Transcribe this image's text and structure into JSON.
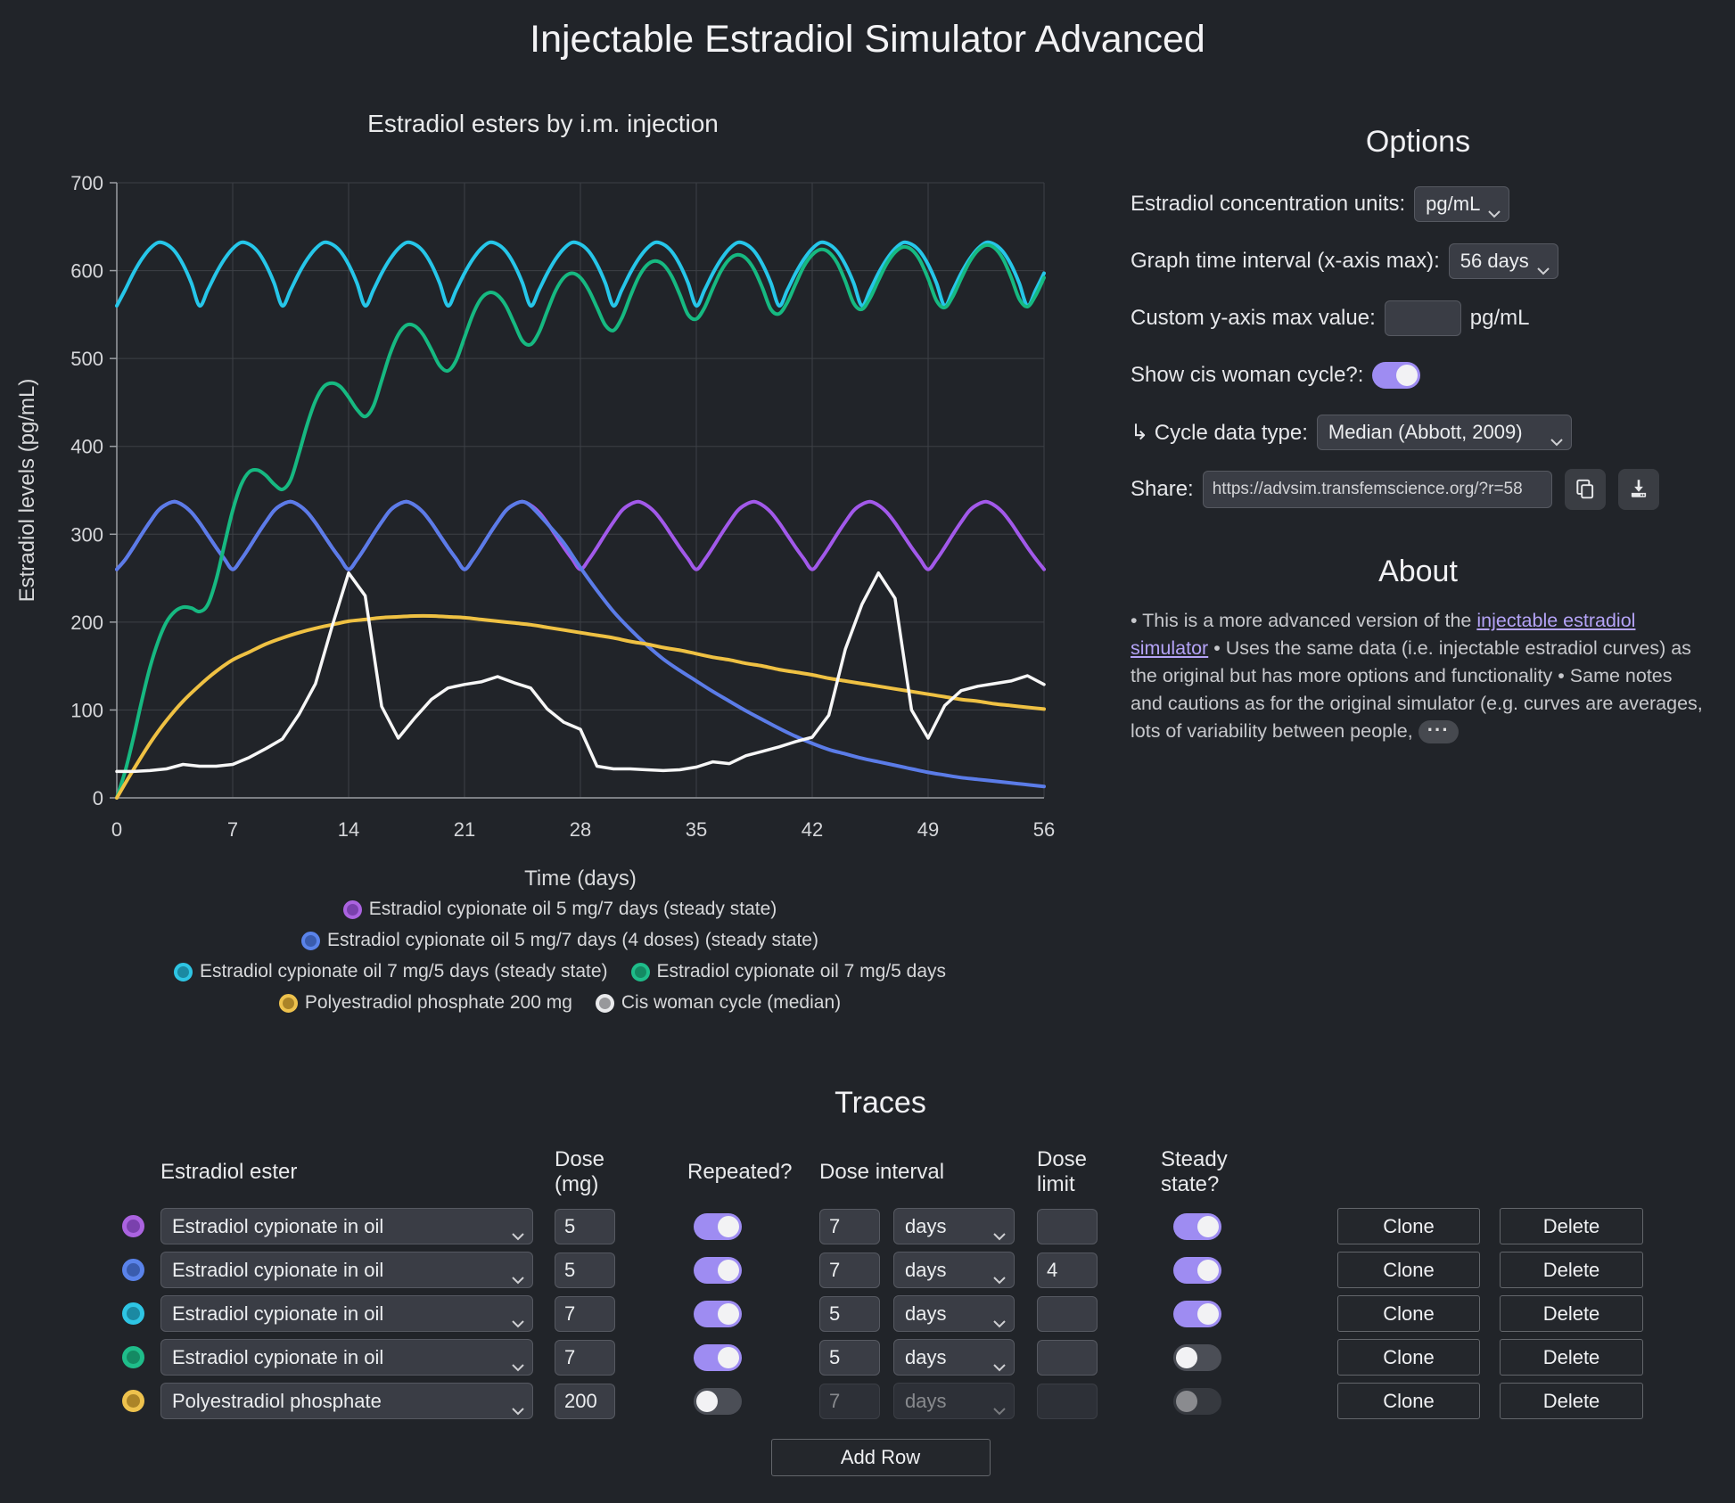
{
  "page": {
    "title": "Injectable Estradiol Simulator Advanced"
  },
  "chart_data": {
    "type": "line",
    "title": "Estradiol esters by i.m. injection",
    "xlabel": "Time (days)",
    "ylabel": "Estradiol levels (pg/mL)",
    "xlim": [
      0,
      56
    ],
    "ylim": [
      0,
      700
    ],
    "xticks": [
      0,
      7,
      14,
      21,
      28,
      35,
      42,
      49,
      56
    ],
    "yticks": [
      0,
      100,
      200,
      300,
      400,
      500,
      600,
      700
    ],
    "grid": true,
    "legend_position": "bottom",
    "series": [
      {
        "name": "Estradiol cypionate oil 5 mg/7 days (steady state)",
        "color": "#a259ea",
        "dot_ring": "#ab63e0",
        "dot_fill": "#7a41ad",
        "smooth": true,
        "width": 4,
        "x_start": 0,
        "x_step": 0.5,
        "values": [
          260,
          271,
          285,
          300,
          314,
          327,
          334,
          337,
          333,
          325,
          313,
          299,
          285,
          272,
          260,
          271,
          285,
          300,
          314,
          327,
          334,
          337,
          333,
          325,
          313,
          299,
          285,
          272,
          260,
          271,
          285,
          300,
          314,
          327,
          334,
          337,
          333,
          325,
          313,
          299,
          285,
          272,
          260,
          271,
          285,
          300,
          314,
          327,
          334,
          337,
          333,
          325,
          313,
          299,
          285,
          272,
          260,
          271,
          285,
          300,
          314,
          327,
          334,
          337,
          333,
          325,
          313,
          299,
          285,
          272,
          260,
          271,
          285,
          300,
          314,
          327,
          334,
          337,
          333,
          325,
          313,
          299,
          285,
          272,
          260,
          271,
          285,
          300,
          314,
          327,
          334,
          337,
          333,
          325,
          313,
          299,
          285,
          272,
          260,
          271,
          285,
          300,
          314,
          327,
          334,
          337,
          333,
          325,
          313,
          299,
          285,
          272,
          260
        ]
      },
      {
        "name": "Estradiol cypionate oil 5 mg/7 days (4 doses) (steady state)",
        "color": "#5b7ce8",
        "dot_ring": "#5a83ea",
        "dot_fill": "#3a5cae",
        "smooth": true,
        "width": 4,
        "points": [
          [
            0,
            260
          ],
          [
            0.5,
            271
          ],
          [
            1,
            285
          ],
          [
            1.5,
            300
          ],
          [
            2,
            314
          ],
          [
            2.5,
            327
          ],
          [
            3,
            334
          ],
          [
            3.5,
            337
          ],
          [
            4,
            333
          ],
          [
            4.5,
            325
          ],
          [
            5,
            313
          ],
          [
            5.5,
            299
          ],
          [
            6,
            285
          ],
          [
            6.5,
            272
          ],
          [
            7,
            260
          ],
          [
            7.5,
            271
          ],
          [
            8,
            285
          ],
          [
            8.5,
            300
          ],
          [
            9,
            314
          ],
          [
            9.5,
            327
          ],
          [
            10,
            334
          ],
          [
            10.5,
            337
          ],
          [
            11,
            333
          ],
          [
            11.5,
            325
          ],
          [
            12,
            313
          ],
          [
            12.5,
            299
          ],
          [
            13,
            285
          ],
          [
            13.5,
            272
          ],
          [
            14,
            260
          ],
          [
            14.5,
            271
          ],
          [
            15,
            285
          ],
          [
            15.5,
            300
          ],
          [
            16,
            314
          ],
          [
            16.5,
            327
          ],
          [
            17,
            334
          ],
          [
            17.5,
            337
          ],
          [
            18,
            333
          ],
          [
            18.5,
            325
          ],
          [
            19,
            313
          ],
          [
            19.5,
            299
          ],
          [
            20,
            285
          ],
          [
            20.5,
            272
          ],
          [
            21,
            260
          ],
          [
            21.5,
            271
          ],
          [
            22,
            285
          ],
          [
            22.5,
            300
          ],
          [
            23,
            314
          ],
          [
            23.5,
            327
          ],
          [
            24,
            334
          ],
          [
            24.5,
            337
          ],
          [
            25,
            332
          ],
          [
            26,
            312
          ],
          [
            27,
            290
          ],
          [
            28,
            262
          ],
          [
            29,
            236
          ],
          [
            30,
            212
          ],
          [
            31,
            192
          ],
          [
            32,
            174
          ],
          [
            33,
            158
          ],
          [
            34,
            145
          ],
          [
            35,
            133
          ],
          [
            36,
            121
          ],
          [
            37,
            110
          ],
          [
            38,
            99
          ],
          [
            39,
            89
          ],
          [
            40,
            79
          ],
          [
            41,
            70
          ],
          [
            42,
            62
          ],
          [
            43,
            55
          ],
          [
            44,
            50
          ],
          [
            45,
            45
          ],
          [
            46,
            41
          ],
          [
            47,
            37
          ],
          [
            48,
            33
          ],
          [
            49,
            29
          ],
          [
            50,
            26
          ],
          [
            51,
            23
          ],
          [
            52,
            21
          ],
          [
            53,
            19
          ],
          [
            54,
            17
          ],
          [
            55,
            15
          ],
          [
            56,
            13
          ]
        ]
      },
      {
        "name": "Estradiol cypionate oil 7 mg/5 days (steady state)",
        "color": "#26c6e9",
        "dot_ring": "#2ec5e4",
        "dot_fill": "#1b89a2",
        "smooth": true,
        "width": 4,
        "x_start": 0,
        "x_step": 0.5,
        "values": [
          560,
          578,
          597,
          613,
          625,
          632,
          630,
          622,
          607,
          586,
          560,
          578,
          597,
          613,
          625,
          632,
          630,
          622,
          607,
          586,
          560,
          578,
          597,
          613,
          625,
          632,
          630,
          622,
          607,
          586,
          560,
          578,
          597,
          613,
          625,
          632,
          630,
          622,
          607,
          586,
          560,
          578,
          597,
          613,
          625,
          632,
          630,
          622,
          607,
          586,
          560,
          578,
          597,
          613,
          625,
          632,
          630,
          622,
          607,
          586,
          560,
          578,
          597,
          613,
          625,
          632,
          630,
          622,
          607,
          586,
          560,
          578,
          597,
          613,
          625,
          632,
          630,
          622,
          607,
          586,
          560,
          578,
          597,
          613,
          625,
          632,
          630,
          622,
          607,
          586,
          560,
          578,
          597,
          613,
          625,
          632,
          630,
          622,
          607,
          586,
          560,
          578,
          597,
          613,
          625,
          632,
          630,
          622,
          607,
          586,
          560,
          578,
          597
        ]
      },
      {
        "name": "Estradiol cypionate oil 7 mg/5 days",
        "color": "#16b981",
        "dot_ring": "#1fbd8a",
        "dot_fill": "#148a63",
        "smooth": true,
        "width": 4,
        "x_start": 0,
        "x_step": 0.5,
        "values": [
          0,
          30,
          68,
          110,
          148,
          178,
          200,
          212,
          217,
          216,
          212,
          220,
          248,
          288,
          327,
          356,
          371,
          373,
          367,
          357,
          351,
          362,
          392,
          425,
          452,
          468,
          472,
          468,
          456,
          442,
          434,
          446,
          475,
          505,
          527,
          538,
          537,
          527,
          510,
          492,
          486,
          498,
          524,
          550,
          568,
          575,
          572,
          560,
          540,
          520,
          516,
          530,
          554,
          577,
          592,
          597,
          592,
          578,
          558,
          538,
          532,
          546,
          570,
          592,
          606,
          611,
          607,
          594,
          573,
          550,
          545,
          558,
          580,
          600,
          613,
          618,
          614,
          601,
          580,
          556,
          551,
          564,
          585,
          605,
          618,
          624,
          621,
          609,
          588,
          563,
          556,
          569,
          589,
          608,
          621,
          627,
          624,
          612,
          591,
          566,
          558,
          571,
          591,
          610,
          623,
          629,
          626,
          614,
          593,
          568,
          559,
          572,
          592
        ]
      },
      {
        "name": "Polyestradiol phosphate 200 mg",
        "color": "#efc143",
        "dot_ring": "#eec24d",
        "dot_fill": "#ab8428",
        "smooth": true,
        "width": 4,
        "x_start": 0,
        "x_step": 1,
        "values": [
          0,
          32,
          62,
          88,
          110,
          128,
          144,
          157,
          166,
          175,
          182,
          188,
          193,
          197,
          201,
          203,
          205,
          206,
          207,
          207,
          206,
          205,
          203,
          201,
          199,
          197,
          194,
          191,
          188,
          185,
          182,
          178,
          175,
          171,
          168,
          164,
          160,
          157,
          153,
          150,
          146,
          143,
          140,
          136,
          133,
          130,
          127,
          124,
          121,
          118,
          115,
          112,
          110,
          107,
          105,
          103,
          101
        ]
      },
      {
        "name": "Cis woman cycle (median)",
        "color": "#f7f7f7",
        "dot_ring": "#e9eaec",
        "dot_fill": "#97989b",
        "smooth": false,
        "width": 3.5,
        "x_start": 0,
        "x_step": 1,
        "values": [
          30,
          30,
          31,
          33,
          38,
          36,
          36,
          38,
          46,
          56,
          67,
          95,
          130,
          195,
          256,
          230,
          104,
          68,
          91,
          112,
          125,
          129,
          132,
          138,
          131,
          125,
          101,
          86,
          78,
          36,
          33,
          33,
          32,
          31,
          32,
          35,
          41,
          39,
          48,
          53,
          58,
          64,
          69,
          94,
          169,
          220,
          256,
          227,
          100,
          68,
          105,
          122,
          127,
          130,
          133,
          139,
          129
        ]
      }
    ],
    "legend_rows": [
      [
        0
      ],
      [
        1
      ],
      [
        2,
        3
      ],
      [
        4,
        5
      ]
    ]
  },
  "options": {
    "heading": "Options",
    "units_label": "Estradiol concentration units:",
    "units_value": "pg/mL",
    "interval_label": "Graph time interval (x-axis max):",
    "interval_value": "56 days",
    "ymax_label": "Custom y-axis max value:",
    "ymax_value": "",
    "ymax_unit": "pg/mL",
    "cycle_toggle_label": "Show cis woman cycle?:",
    "show_cycle": true,
    "cycle_type_label": "↳ Cycle data type:",
    "cycle_type_value": "Median (Abbott, 2009)",
    "share_label": "Share:",
    "share_url": "https://advsim.transfemscience.org/?r=58"
  },
  "about": {
    "heading": "About",
    "text1": "• This is a more advanced version of the ",
    "link_text": "injectable estradiol simulator",
    "text2": " • Uses the same data (i.e. injectable estradiol curves) as the original but has more options and functionality • Same notes and cautions as for the original simulator (e.g. curves are averages, lots of variability between people,",
    "ellipsis": "···"
  },
  "traces": {
    "heading": "Traces",
    "headers": {
      "ester": "Estradiol ester",
      "dose": "Dose (mg)",
      "repeated": "Repeated?",
      "interval": "Dose interval",
      "limit": "Dose limit",
      "steady": "Steady state?"
    },
    "clone_label": "Clone",
    "delete_label": "Delete",
    "add_row_label": "Add Row",
    "rows": [
      {
        "dot_ring": "#ab63e0",
        "dot_fill": "#7a41ad",
        "ester": "Estradiol cypionate in oil",
        "dose": "5",
        "repeated": true,
        "interval": "7",
        "interval_unit": "days",
        "limit": "",
        "steady": true
      },
      {
        "dot_ring": "#5a83ea",
        "dot_fill": "#3a5cae",
        "ester": "Estradiol cypionate in oil",
        "dose": "5",
        "repeated": true,
        "interval": "7",
        "interval_unit": "days",
        "limit": "4",
        "steady": true
      },
      {
        "dot_ring": "#2ec5e4",
        "dot_fill": "#1b89a2",
        "ester": "Estradiol cypionate in oil",
        "dose": "7",
        "repeated": true,
        "interval": "5",
        "interval_unit": "days",
        "limit": "",
        "steady": true
      },
      {
        "dot_ring": "#1fbd8a",
        "dot_fill": "#148a63",
        "ester": "Estradiol cypionate in oil",
        "dose": "7",
        "repeated": true,
        "interval": "5",
        "interval_unit": "days",
        "limit": "",
        "steady": false
      },
      {
        "dot_ring": "#eec24d",
        "dot_fill": "#ab8428",
        "ester": "Polyestradiol phosphate",
        "dose": "200",
        "repeated": false,
        "interval": "7",
        "interval_unit": "days",
        "limit": "",
        "steady": false,
        "interval_disabled": true,
        "steady_disabled": true
      }
    ]
  }
}
